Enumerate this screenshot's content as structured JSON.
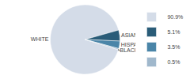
{
  "chart_data": {
    "type": "pie",
    "categories": [
      "WHITE",
      "ASIAN",
      "HISPANIC",
      "BLACK"
    ],
    "values": [
      90.9,
      5.1,
      3.5,
      0.5
    ],
    "value_labels": [
      "90.9%",
      "5.1%",
      "3.5%",
      "0.5%"
    ],
    "colors": [
      "#d4dce8",
      "#2a5c78",
      "#4a85a8",
      "#a0b8cc"
    ],
    "legend": "right"
  }
}
